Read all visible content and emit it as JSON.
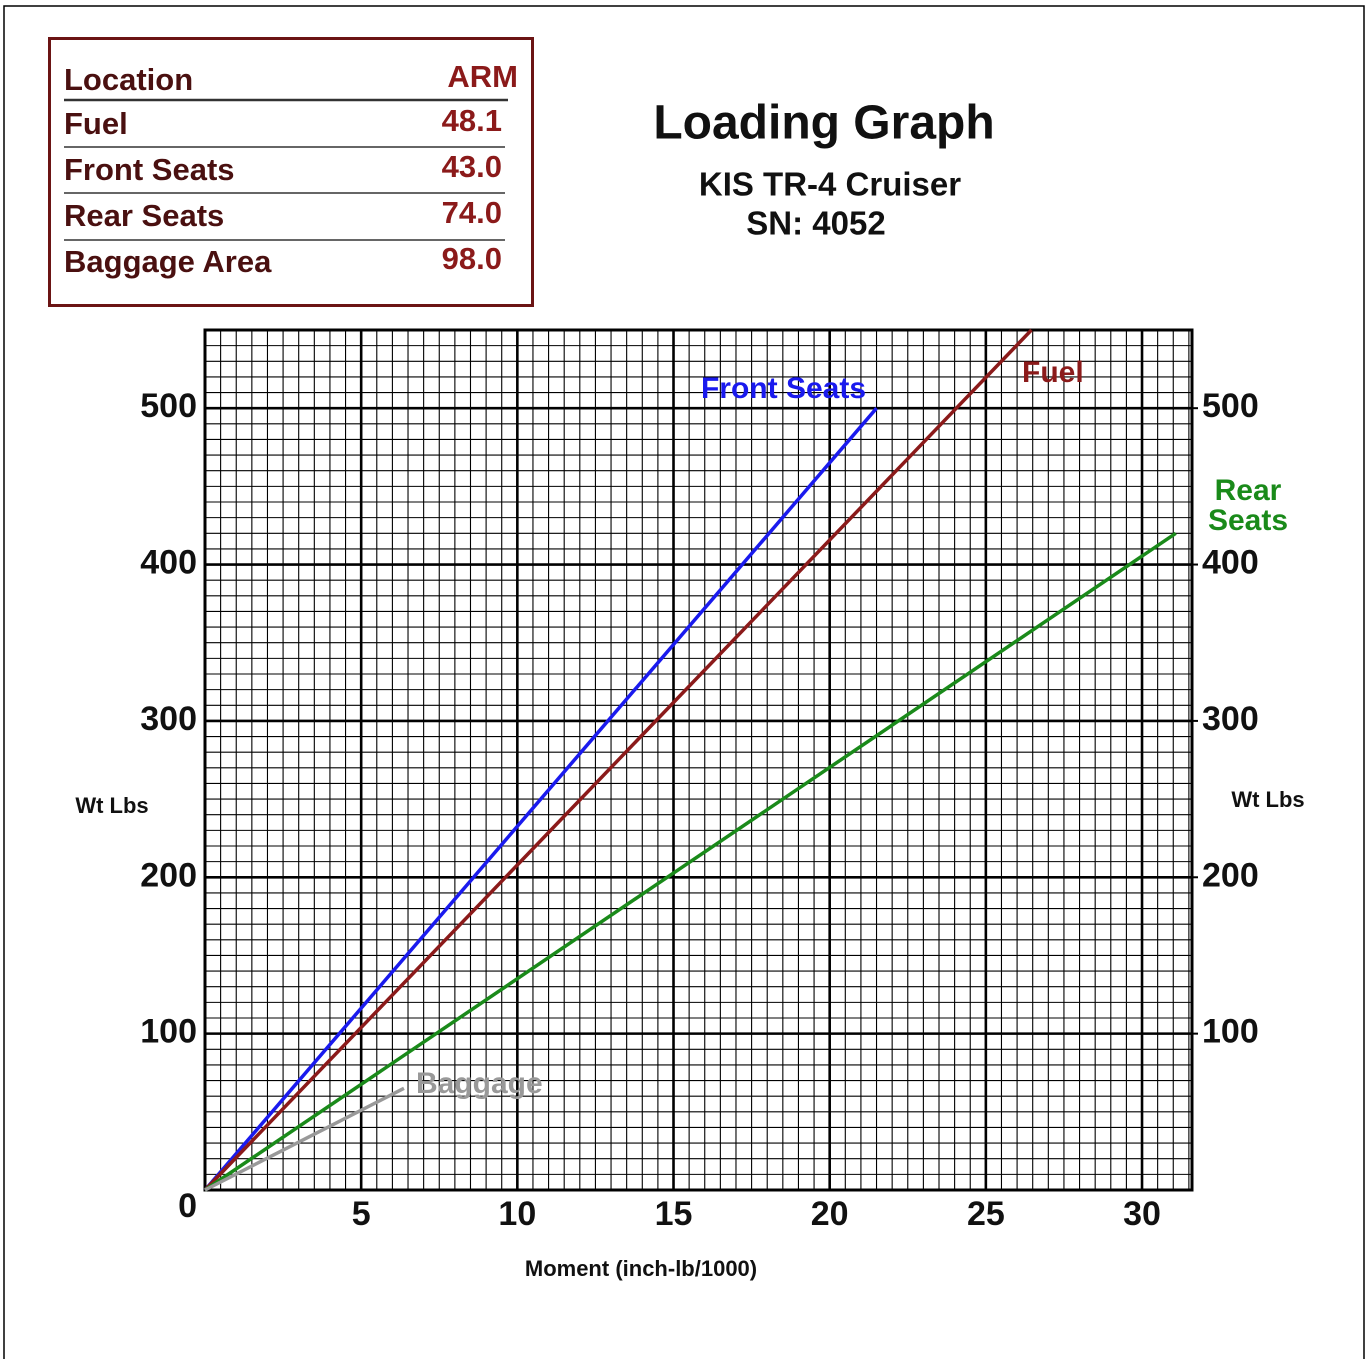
{
  "chart_data": {
    "type": "line",
    "title": "Loading Graph",
    "subtitle": [
      "KIS TR-4 Cruiser",
      "SN: 4052"
    ],
    "table": {
      "header": [
        "Location",
        "ARM"
      ],
      "rows": [
        [
          "Fuel",
          "48.1"
        ],
        [
          "Front Seats",
          "43.0"
        ],
        [
          "Rear Seats",
          "74.0"
        ],
        [
          "Baggage Area",
          "98.0"
        ]
      ]
    },
    "xlabel": "Moment (inch-lb/1000)",
    "ylabel": "Wt Lbs",
    "y2label": "Wt Lbs",
    "xlim": [
      0,
      31.6
    ],
    "ylim": [
      0,
      550
    ],
    "y2lim": [
      0,
      550
    ],
    "xticks": [
      5,
      10,
      15,
      20,
      25,
      30
    ],
    "yticks": [
      0,
      100,
      200,
      300,
      400,
      500
    ],
    "y2ticks": [
      100,
      200,
      300,
      400,
      500
    ],
    "grid": true,
    "series": [
      {
        "name": "Front Seats",
        "color": "#1a1aee",
        "x": [
          0,
          21.5
        ],
        "values": [
          0,
          500
        ]
      },
      {
        "name": "Fuel",
        "color": "#8b1a1a",
        "x": [
          0,
          26.46
        ],
        "values": [
          0,
          550
        ]
      },
      {
        "name": "Rear Seats",
        "color": "#1a8a1a",
        "x": [
          0,
          31.08
        ],
        "values": [
          0,
          420
        ]
      },
      {
        "name": "Baggage",
        "color": "#999999",
        "x": [
          0,
          6.37
        ],
        "values": [
          0,
          65
        ]
      }
    ]
  }
}
